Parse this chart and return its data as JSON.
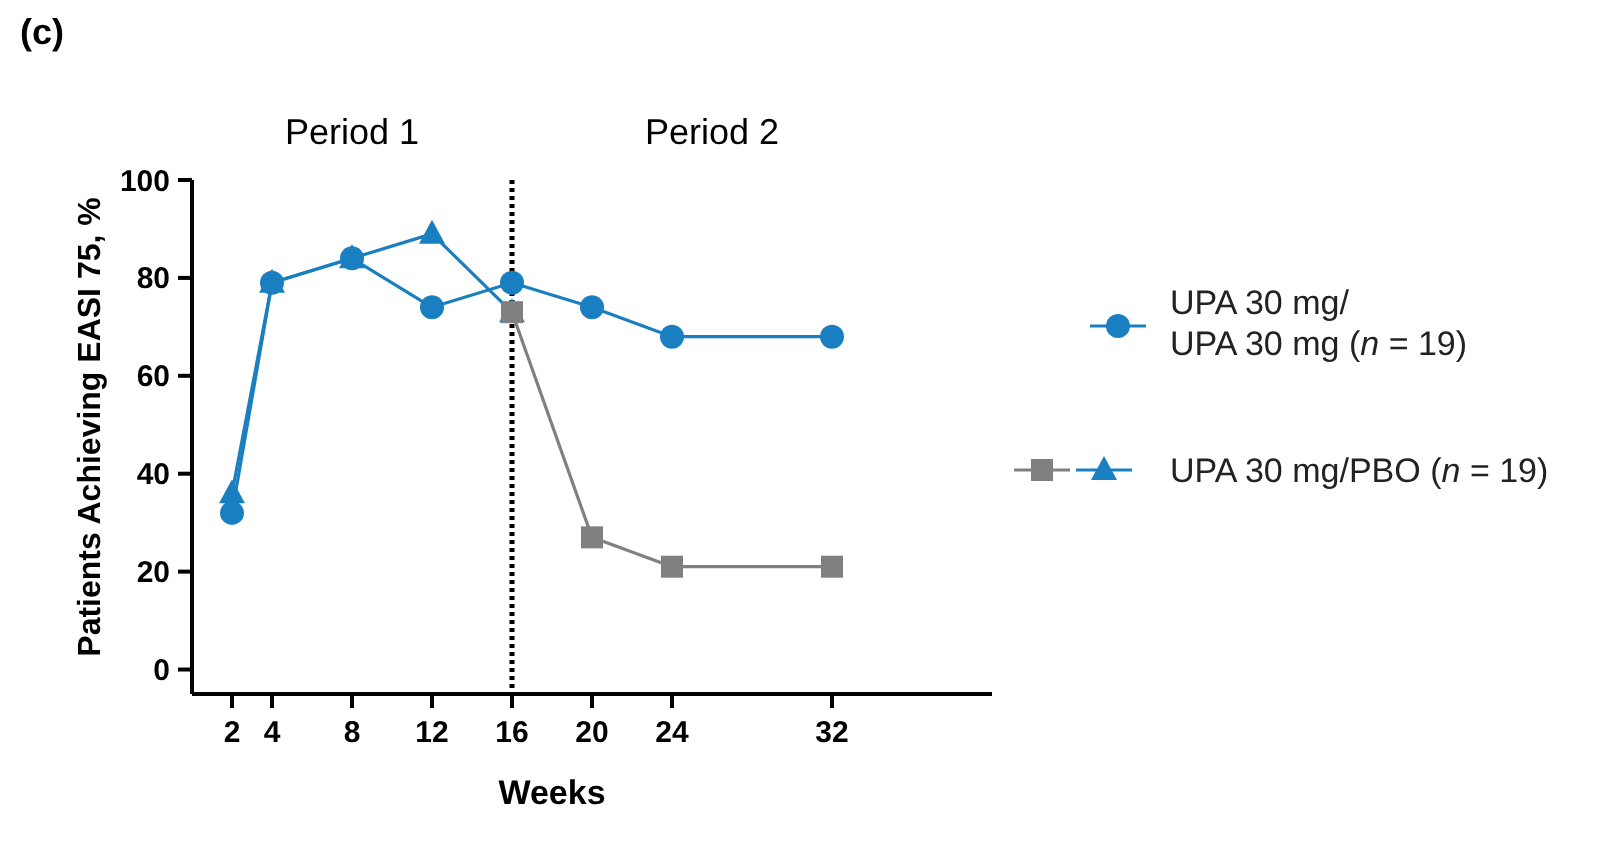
{
  "chart_data": {
    "type": "line",
    "xlabel": "Weeks",
    "ylabel": "Patients Achieving EASI 75, %",
    "xlim": [
      0,
      40
    ],
    "ylim": [
      -5,
      100
    ],
    "xticks": [
      2,
      4,
      8,
      12,
      16,
      20,
      24,
      32
    ],
    "yticks": [
      0,
      20,
      40,
      60,
      80,
      100
    ],
    "series": [
      {
        "name": "UPA 30 mg/\nUPA 30 mg (n = 19)",
        "color": "#1a7fc1",
        "marker": "circle",
        "x": [
          2,
          4,
          8,
          12,
          16,
          20,
          24,
          32
        ],
        "values": [
          32,
          79,
          84,
          74,
          79,
          74,
          68,
          68
        ]
      },
      {
        "name": "UPA 30 mg/PBO (n = 19)",
        "color": "#1a7fc1",
        "marker": "triangle",
        "x": [
          2,
          4,
          8,
          12,
          16
        ],
        "values": [
          36,
          79,
          84,
          89,
          73
        ]
      },
      {
        "color": "#808080",
        "marker": "square",
        "x": [
          16,
          20,
          24,
          32
        ],
        "values": [
          73,
          27,
          21,
          21
        ]
      }
    ],
    "ref_lines": [
      {
        "axis": "x",
        "value": 16,
        "color": "#000000",
        "line_style": "dotted"
      }
    ],
    "annotations": [
      "(c)",
      "Period 1",
      "Period 2"
    ],
    "legend": "right",
    "grid": false
  }
}
